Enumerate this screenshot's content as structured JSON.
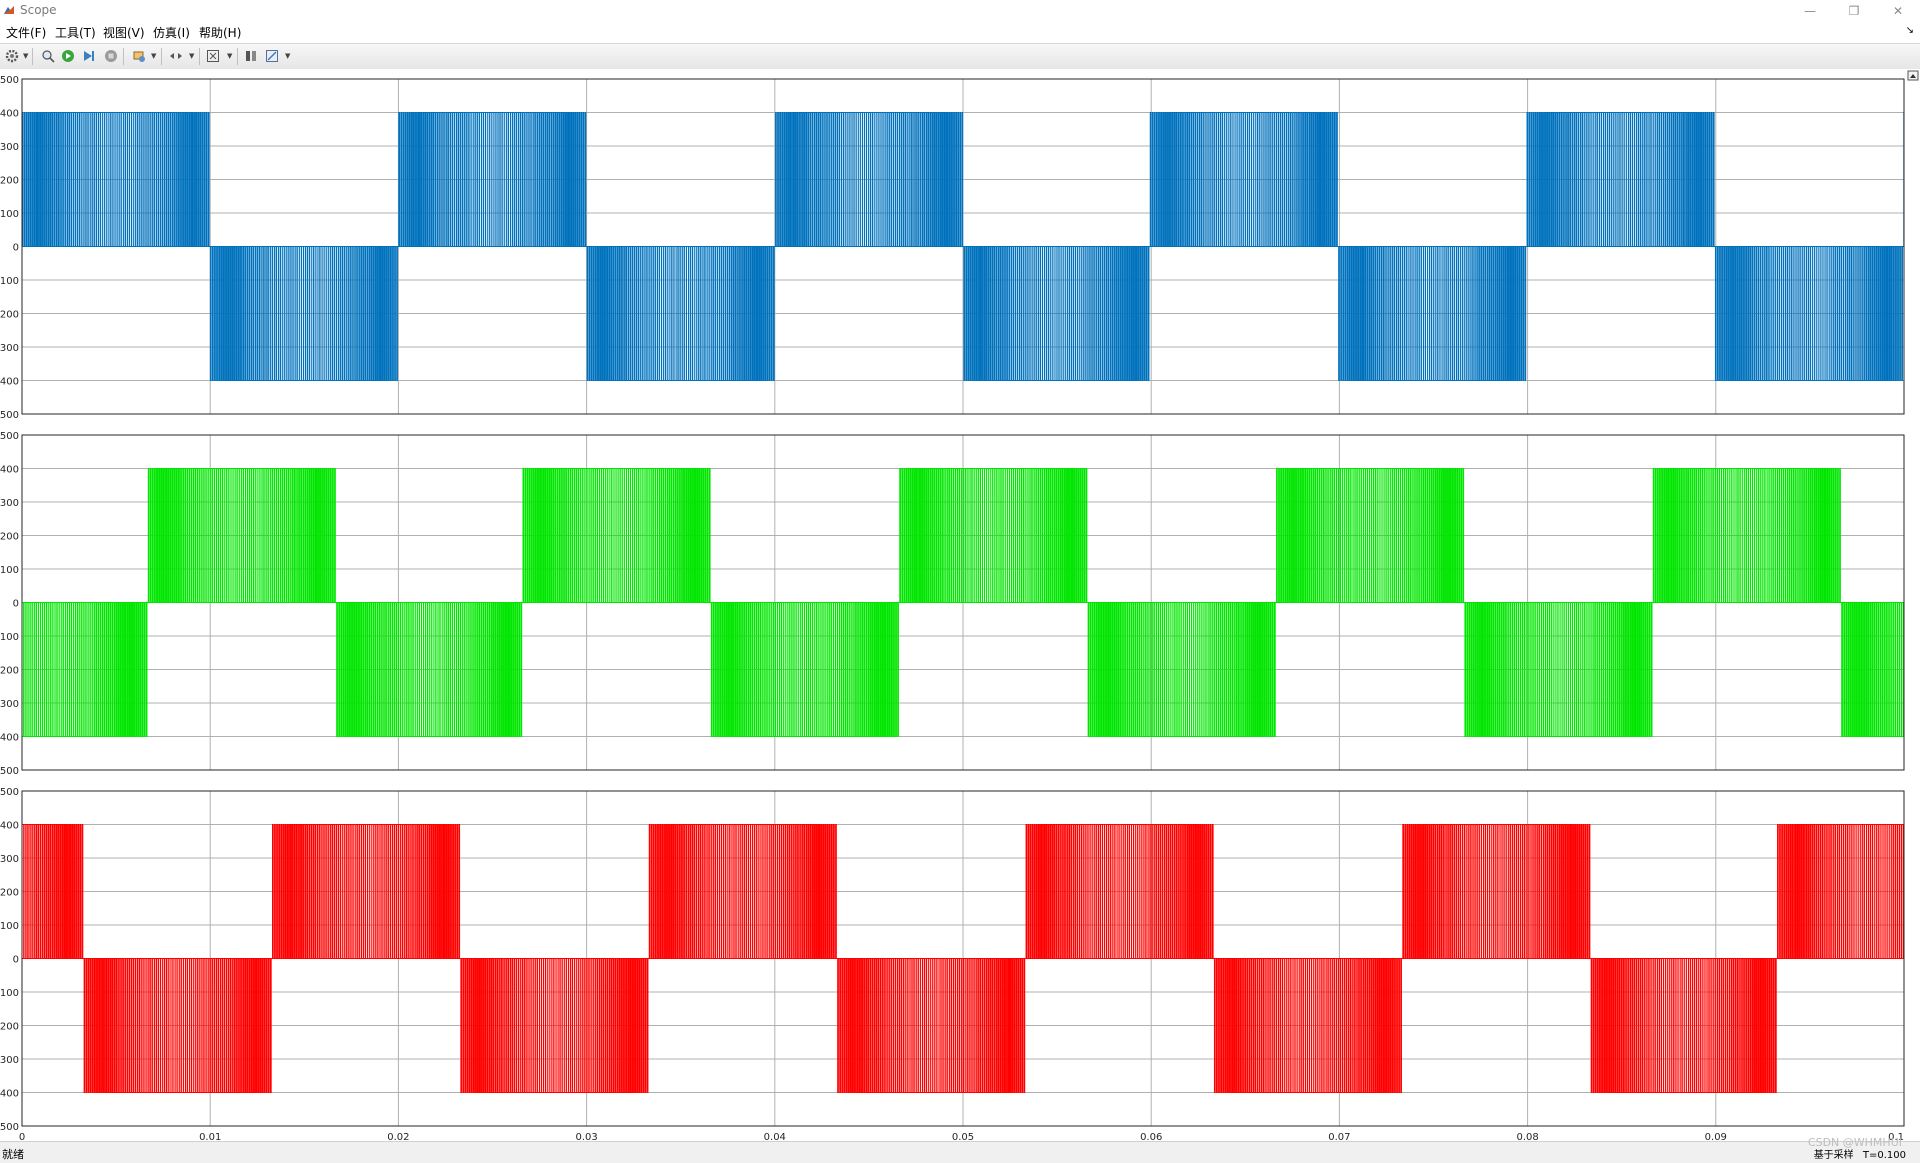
{
  "window": {
    "title": "Scope",
    "minimize_glyph": "—",
    "restore_glyph": "❐",
    "close_glyph": "✕"
  },
  "menu": {
    "items": [
      {
        "label": "文件(F)"
      },
      {
        "label": "工具(T)"
      },
      {
        "label": "视图(V)"
      },
      {
        "label": "仿真(I)"
      },
      {
        "label": "帮助(H)"
      }
    ],
    "dock_glyph": "↘"
  },
  "toolbar": {
    "icons": [
      "settings-icon",
      "zoom-in-icon",
      "run-icon",
      "step-forward-icon",
      "stop-icon",
      "highlight-icon",
      "zoom-axes-icon",
      "autoscale-icon",
      "cursor-icon",
      "triggers-icon"
    ]
  },
  "status": {
    "left": "就绪",
    "right_items": [
      "基于采样",
      "T=0.100"
    ]
  },
  "watermark": "CSDN @WHMHUI",
  "colors": {
    "series_1": "#0072bd",
    "series_2": "#00e600",
    "series_3": "#ff0000",
    "grid": "#b0b0b0"
  },
  "chart_data": [
    {
      "type": "line",
      "title": "",
      "xlabel": "",
      "ylabel": "",
      "xlim": [
        0,
        0.1
      ],
      "ylim": [
        -500,
        500
      ],
      "grid": true,
      "x_ticks": [
        "0",
        "0.01",
        "0.02",
        "0.03",
        "0.04",
        "0.05",
        "0.06",
        "0.07",
        "0.08",
        "0.09",
        "0.1"
      ],
      "y_ticks": [
        "500",
        "400",
        "300",
        "200",
        "100",
        "0",
        "-100",
        "-200",
        "-300",
        "-400",
        "-500"
      ],
      "series": [
        {
          "color": "#0072bd",
          "amplitude": 400,
          "fundamental_hz": 50,
          "phase_deg": 0,
          "waveform": "PWM pulses: +400 during positive half-cycle, -400 during negative half-cycle"
        }
      ]
    },
    {
      "type": "line",
      "title": "",
      "xlabel": "",
      "ylabel": "",
      "xlim": [
        0,
        0.1
      ],
      "ylim": [
        -500,
        500
      ],
      "grid": true,
      "x_ticks": [
        "0",
        "0.01",
        "0.02",
        "0.03",
        "0.04",
        "0.05",
        "0.06",
        "0.07",
        "0.08",
        "0.09",
        "0.1"
      ],
      "y_ticks": [
        "500",
        "400",
        "300",
        "200",
        "100",
        "0",
        "-100",
        "-200",
        "-300",
        "-400",
        "-500"
      ],
      "series": [
        {
          "color": "#00e600",
          "amplitude": 400,
          "fundamental_hz": 50,
          "phase_deg": -120,
          "waveform": "PWM pulses: +400 during positive half-cycle, -400 during negative half-cycle"
        }
      ]
    },
    {
      "type": "line",
      "title": "",
      "xlabel": "",
      "ylabel": "",
      "xlim": [
        0,
        0.1
      ],
      "ylim": [
        -500,
        500
      ],
      "grid": true,
      "x_ticks": [
        "0",
        "0.01",
        "0.02",
        "0.03",
        "0.04",
        "0.05",
        "0.06",
        "0.07",
        "0.08",
        "0.09",
        "0.1"
      ],
      "y_ticks": [
        "500",
        "400",
        "300",
        "200",
        "100",
        "0",
        "-100",
        "-200",
        "-300",
        "-400",
        "-500"
      ],
      "series": [
        {
          "color": "#ff0000",
          "amplitude": 400,
          "fundamental_hz": 50,
          "phase_deg": 120,
          "waveform": "PWM pulses: +400 during positive half-cycle, -400 during negative half-cycle"
        }
      ]
    }
  ]
}
